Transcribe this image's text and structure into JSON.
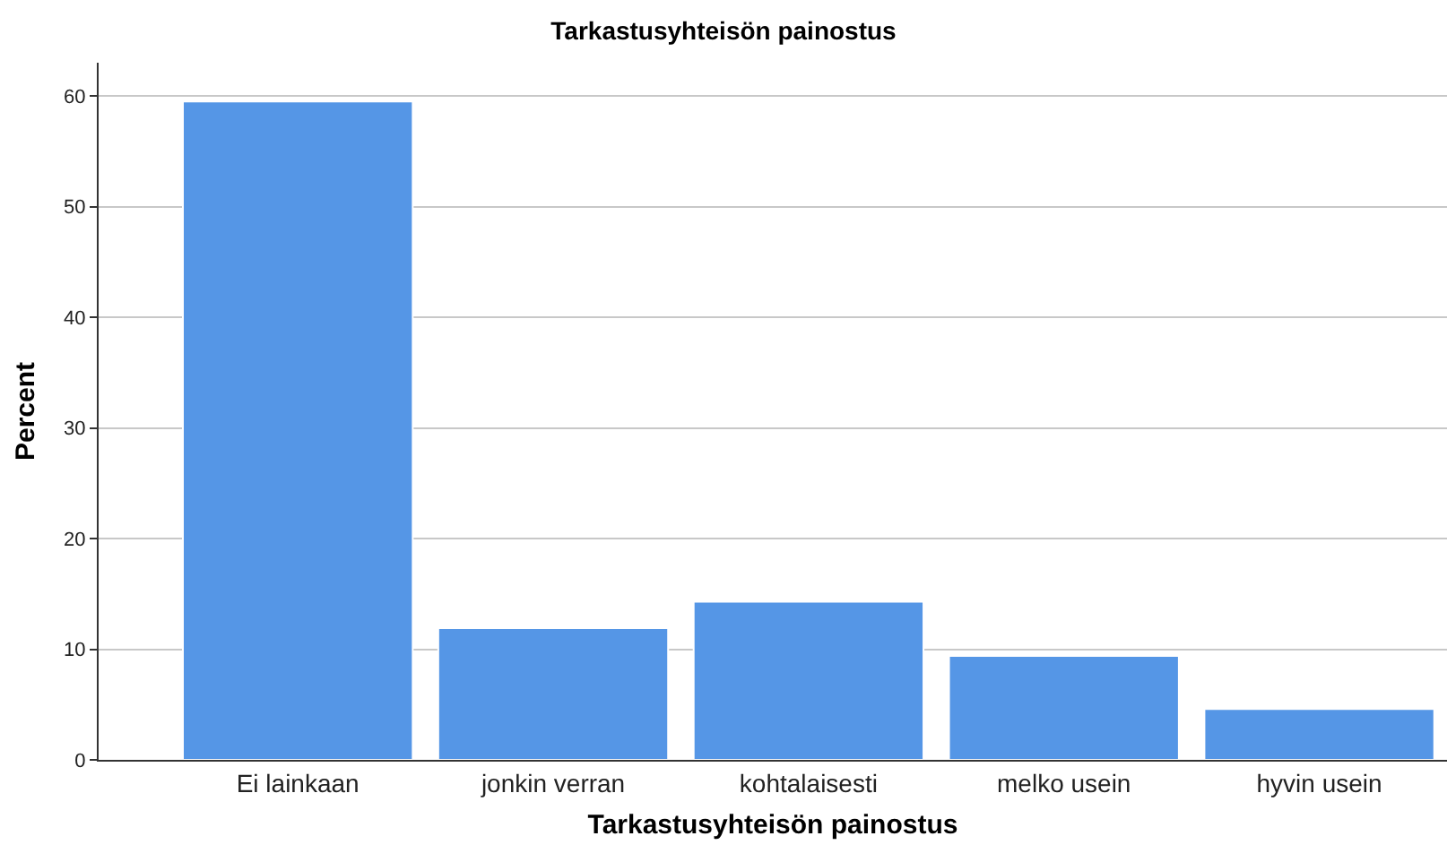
{
  "chart_data": {
    "type": "bar",
    "title": "Tarkastusyhteisön painostus",
    "xlabel": "Tarkastusyhteisön painostus",
    "ylabel": "Percent",
    "categories": [
      "Ei lainkaan",
      "jonkin verran",
      "kohtalaisesti",
      "melko usein",
      "hyvin usein"
    ],
    "values": [
      59.5,
      11.9,
      14.3,
      9.4,
      4.6
    ],
    "color": "#5596e6",
    "ylim": [
      0,
      63
    ],
    "yticks": [
      0,
      10,
      20,
      30,
      40,
      50,
      60
    ],
    "grid": "y",
    "legend": false
  }
}
